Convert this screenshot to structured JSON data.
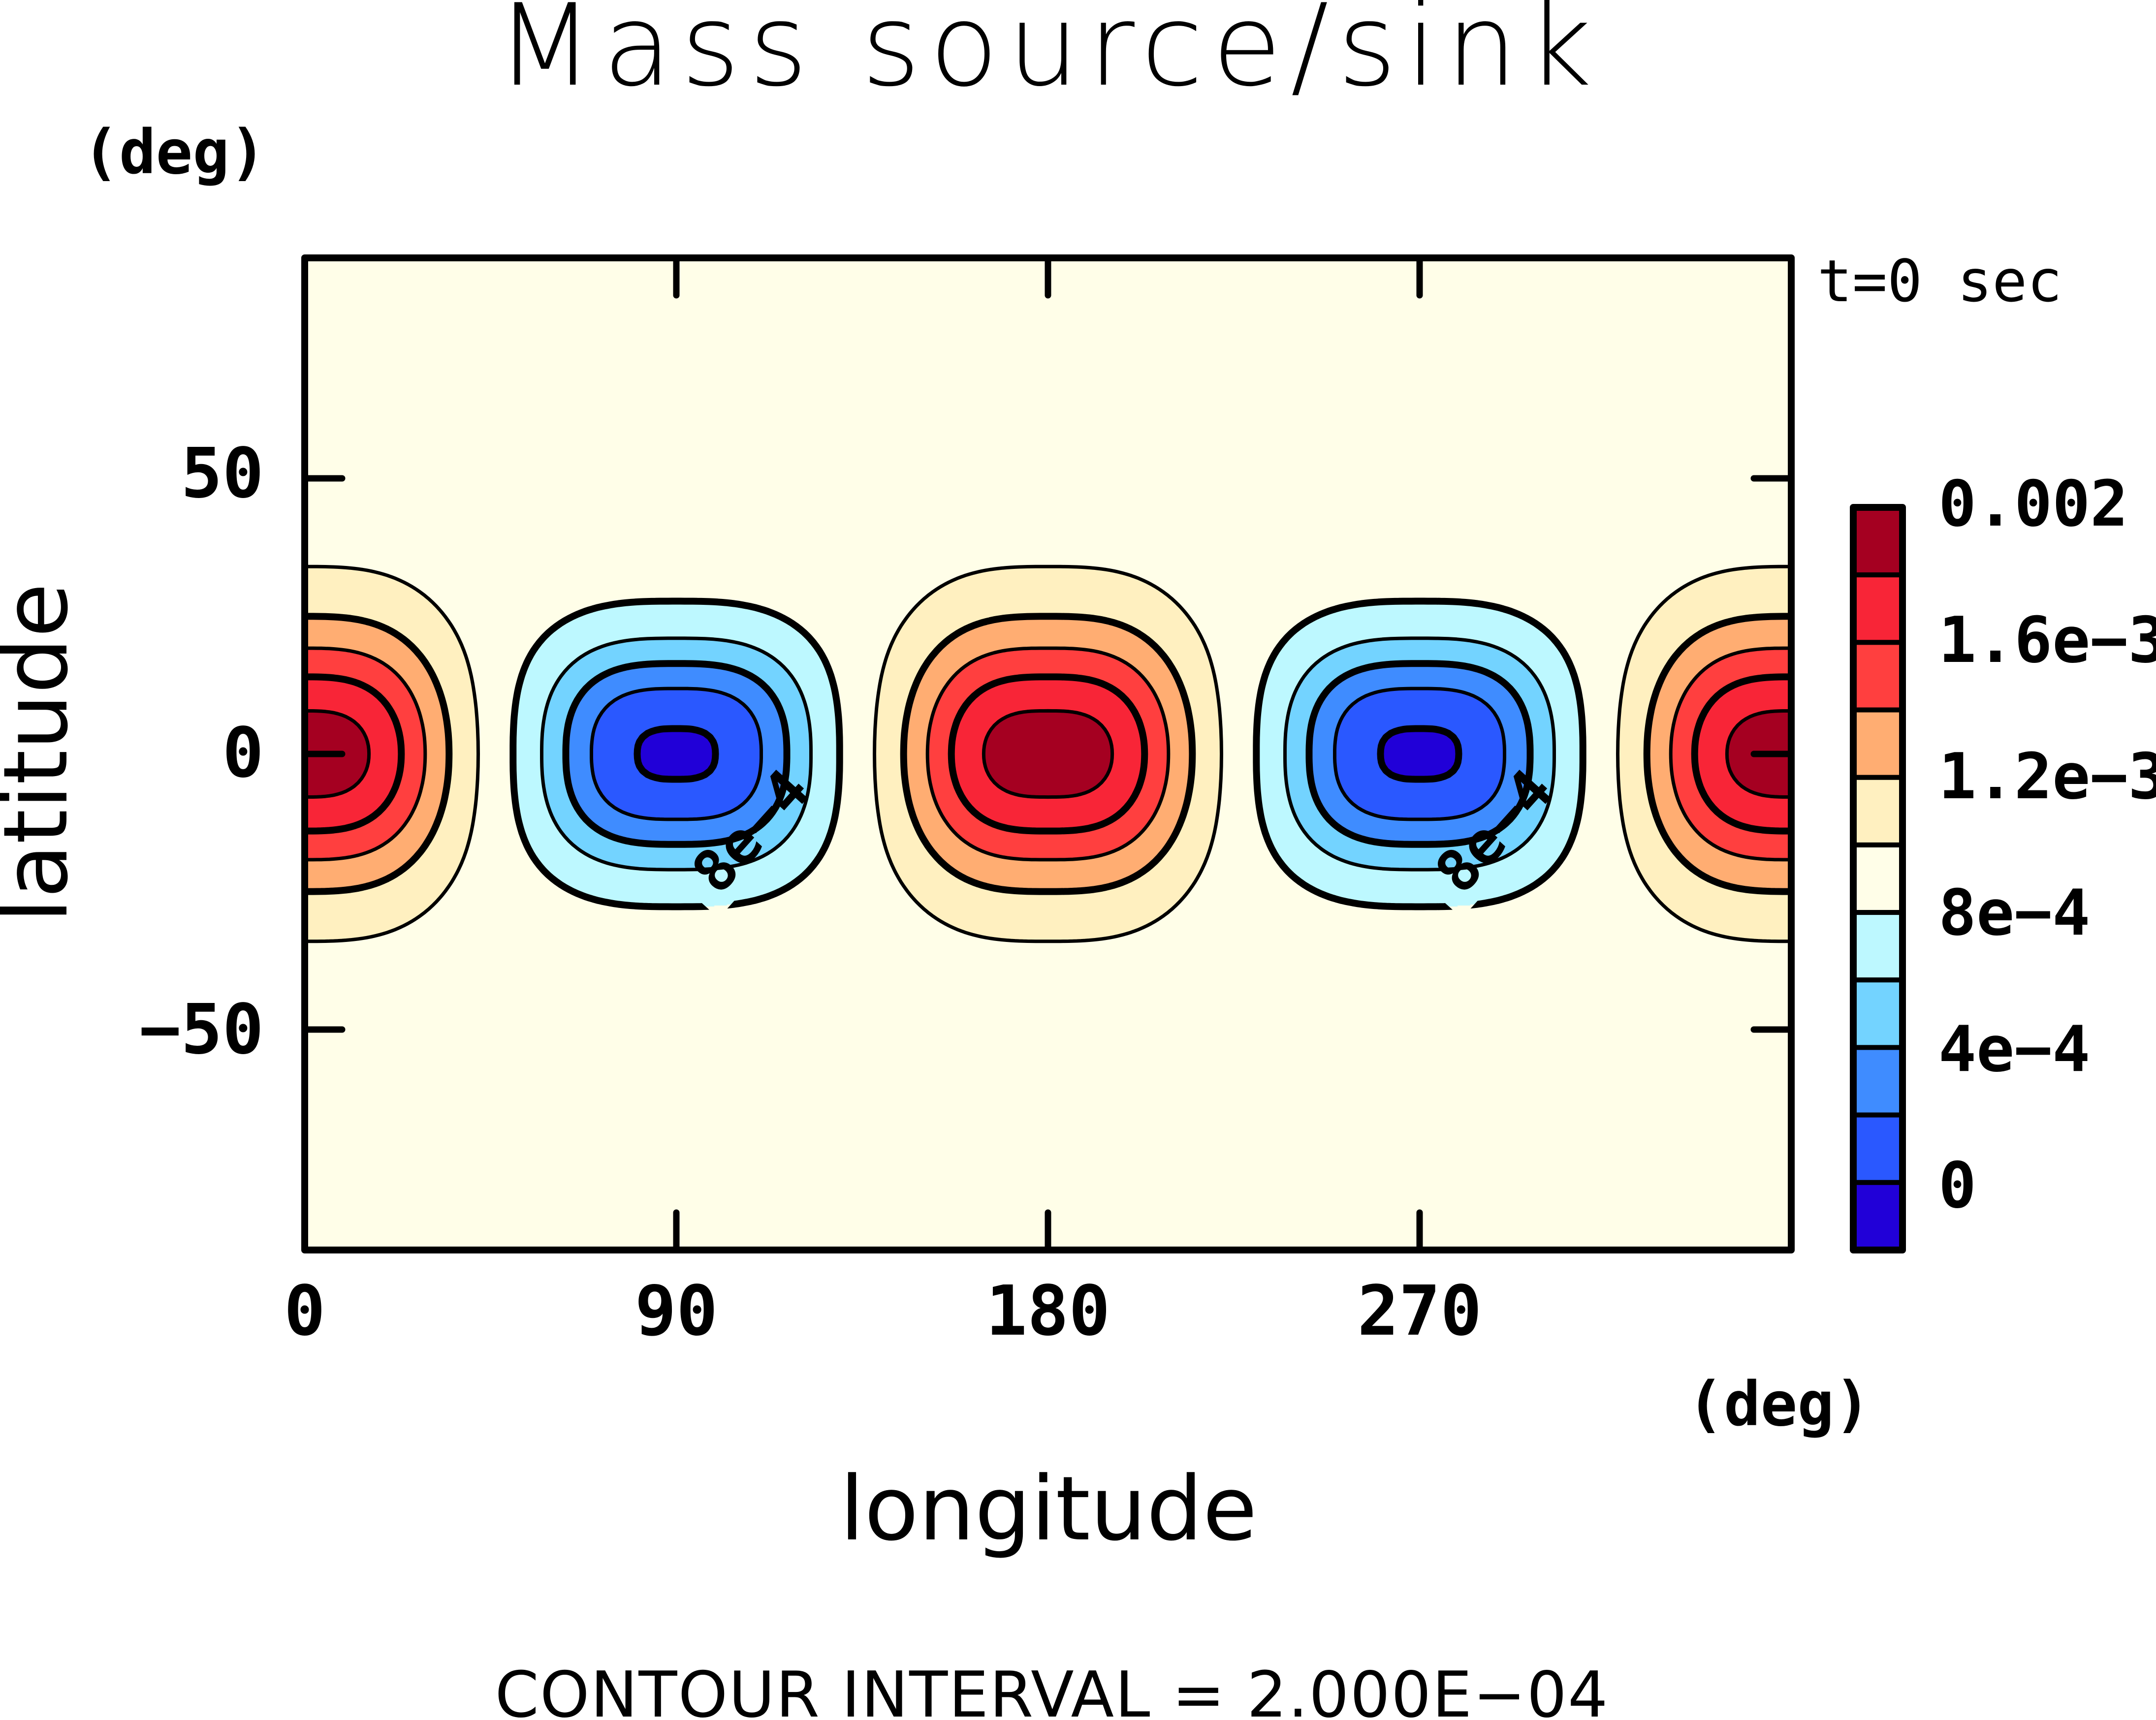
{
  "chart_data": {
    "type": "heatmap",
    "subtype": "filled-contour",
    "title": "Mass source/sink",
    "time_label": "t=0 sec",
    "xlabel": "longitude",
    "ylabel": "latitude",
    "x_units": "(deg)",
    "y_units": "(deg)",
    "xlim": [
      0,
      360
    ],
    "ylim": [
      -90,
      90
    ],
    "x_ticks": [
      0,
      90,
      180,
      270,
      360
    ],
    "x_tick_labels": [
      "0",
      "90",
      "180",
      "270"
    ],
    "y_ticks": [
      50,
      0,
      -50
    ],
    "y_tick_labels": [
      "50",
      "0",
      "−50"
    ],
    "grid": false,
    "footer": "CONTOUR INTERVAL = 2.000E−04",
    "contour_interval": 0.0002,
    "contour_levels": [
      0,
      0.0002,
      0.0004,
      0.0006,
      0.0008,
      0.001,
      0.0012,
      0.0014,
      0.0016,
      0.0018
    ],
    "thick_levels": [
      0,
      0.0004,
      0.0008,
      0.0012,
      0.0016
    ],
    "contour_label": "8e−4",
    "contour_label_positions": [
      {
        "lon": 108,
        "lat": -14
      },
      {
        "lon": 288,
        "lat": -14
      }
    ],
    "field_description": "zonal wavenumber-2 pattern of equatorial maxima at 0/180/360 deg and minima at 90/270 deg",
    "field_model": {
      "background": 0.0009,
      "maxima": {
        "lons": [
          0,
          180,
          360
        ],
        "lat": 0,
        "amplitude": 0.001,
        "lon_halfwidth": 33.0,
        "lon_power": 3,
        "lat_halfwidth": 22.85,
        "lat_power": 2.1,
        "peak_value": 0.0019
      },
      "minima": {
        "lons": [
          90,
          270
        ],
        "lat": 0,
        "amplitude": -0.000925,
        "lon_halfwidth": 31.5,
        "lon_power": 3,
        "lat_halfwidth": 20.0,
        "lat_power": 2.45,
        "trough_value": -2.5e-05
      }
    },
    "colorbar": {
      "placement": "right",
      "bins": [
        {
          "min": 0.0018,
          "max": 0.002,
          "color": "#a50021"
        },
        {
          "min": 0.0016,
          "max": 0.0018,
          "color": "#f82537"
        },
        {
          "min": 0.0014,
          "max": 0.0016,
          "color": "#ff3f3f"
        },
        {
          "min": 0.0012,
          "max": 0.0014,
          "color": "#ffad72"
        },
        {
          "min": 0.001,
          "max": 0.0012,
          "color": "#fff0c0"
        },
        {
          "min": 0.0008,
          "max": 0.001,
          "color": "#fffee8"
        },
        {
          "min": 0.0006,
          "max": 0.0008,
          "color": "#bdf8ff"
        },
        {
          "min": 0.0004,
          "max": 0.0006,
          "color": "#73d3ff"
        },
        {
          "min": 0.0002,
          "max": 0.0004,
          "color": "#3f8cff"
        },
        {
          "min": 0.0,
          "max": 0.0002,
          "color": "#2a58ff"
        },
        {
          "min": -0.0002,
          "max": 0.0,
          "color": "#2100d8"
        }
      ],
      "labels": [
        {
          "value": 0.002,
          "text": "0.002"
        },
        {
          "value": 0.0016,
          "text": "1.6e−3"
        },
        {
          "value": 0.0012,
          "text": "1.2e−3"
        },
        {
          "value": 0.0008,
          "text": "8e−4"
        },
        {
          "value": 0.0004,
          "text": "4e−4"
        },
        {
          "value": 0,
          "text": "0"
        }
      ]
    }
  }
}
